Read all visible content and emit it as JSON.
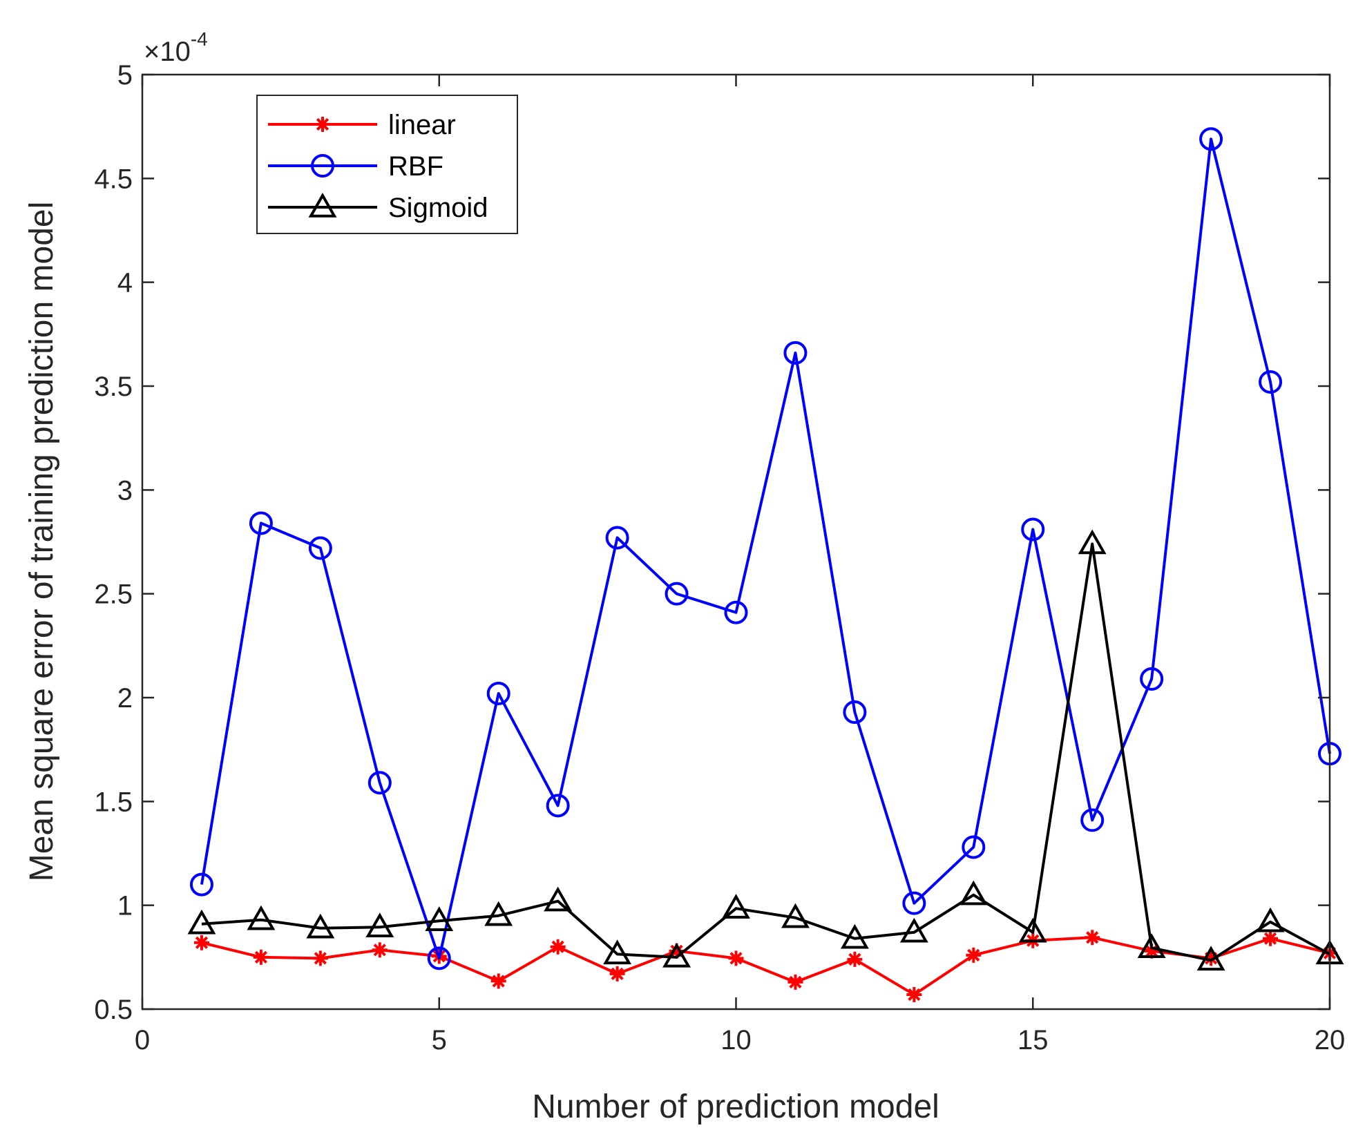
{
  "chart_data": {
    "type": "line",
    "title": "",
    "xlabel": "Number of prediction model",
    "ylabel": "Mean square error of training prediction model",
    "exponent_label": {
      "base": "×10",
      "power": "-4"
    },
    "xlim": [
      0,
      20
    ],
    "ylim": [
      0.5,
      5
    ],
    "xticks": [
      0,
      5,
      10,
      15,
      20
    ],
    "xtick_labels": [
      "0",
      "5",
      "10",
      "15",
      "20"
    ],
    "yticks": [
      0.5,
      1,
      1.5,
      2,
      2.5,
      3,
      3.5,
      4,
      4.5,
      5
    ],
    "ytick_labels": [
      "0.5",
      "1",
      "1.5",
      "2",
      "2.5",
      "3",
      "3.5",
      "4",
      "4.5",
      "5"
    ],
    "grid": false,
    "legend_position": "top-left",
    "x": [
      1,
      2,
      3,
      4,
      5,
      6,
      7,
      8,
      9,
      10,
      11,
      12,
      13,
      14,
      15,
      16,
      17,
      18,
      19,
      20
    ],
    "series": [
      {
        "name": "linear",
        "color": "#ff0000",
        "marker": "asterisk",
        "values": [
          0.82,
          0.75,
          0.745,
          0.785,
          0.755,
          0.635,
          0.8,
          0.67,
          0.78,
          0.745,
          0.63,
          0.74,
          0.57,
          0.76,
          0.83,
          0.845,
          0.78,
          0.745,
          0.84,
          0.77
        ]
      },
      {
        "name": "RBF",
        "color": "#0000ff",
        "marker": "circle",
        "values": [
          1.1,
          2.84,
          2.72,
          1.59,
          0.745,
          2.02,
          1.48,
          2.77,
          2.5,
          2.41,
          3.66,
          1.93,
          1.01,
          1.28,
          2.81,
          1.41,
          2.09,
          4.69,
          3.52,
          1.73
        ]
      },
      {
        "name": "Sigmoid",
        "color": "#000000",
        "marker": "triangle",
        "values": [
          0.91,
          0.93,
          0.89,
          0.895,
          0.925,
          0.95,
          1.02,
          0.765,
          0.75,
          0.985,
          0.94,
          0.84,
          0.87,
          1.05,
          0.87,
          2.74,
          0.795,
          0.735,
          0.92,
          0.765
        ]
      }
    ]
  }
}
